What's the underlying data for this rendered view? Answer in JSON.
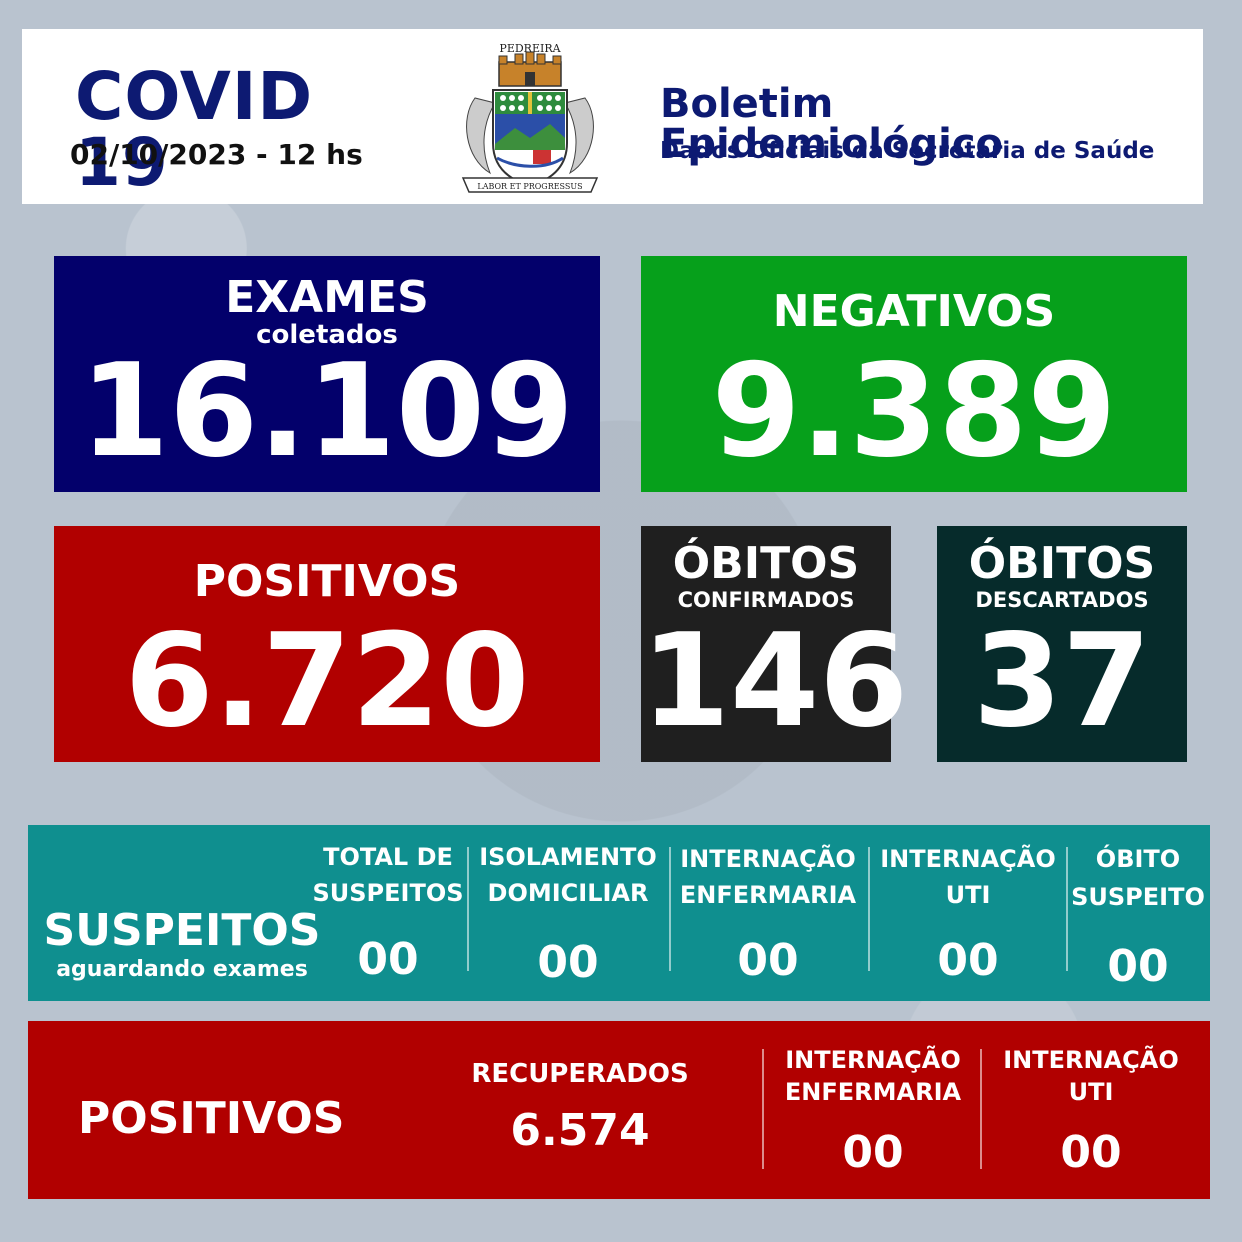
{
  "header": {
    "title": "COVID 19",
    "date": "02/10/2023 - 12 hs",
    "crest": {
      "name": "PEDREIRA",
      "motto": "LABOR ET PROGRESSUS"
    },
    "bulletin_title": "Boletim Epidemiológico",
    "bulletin_subtitle": "Dados Oficiais da Secretaria de Saúde"
  },
  "exames": {
    "label": "EXAMES",
    "sublabel": "coletados",
    "value": "16.109",
    "color": "#03006b"
  },
  "negativos": {
    "label": "NEGATIVOS",
    "value": "9.389",
    "color": "#06a01b"
  },
  "positivos": {
    "label": "POSITIVOS",
    "value": "6.720",
    "color": "#b10000"
  },
  "obitos_confirmados": {
    "label": "ÓBITOS",
    "sublabel": "CONFIRMADOS",
    "value": "146",
    "color": "#1f1f1f"
  },
  "obitos_descartados": {
    "label": "ÓBITOS",
    "sublabel": "DESCARTADOS",
    "value": "37",
    "color": "#062b2b"
  },
  "suspeitos": {
    "title": "SUSPEITOS",
    "subtitle": "aguardando exames",
    "color": "#0f8f8f",
    "columns": [
      {
        "line1": "TOTAL DE",
        "line2": "SUSPEITOS",
        "value": "00"
      },
      {
        "line1": "ISOLAMENTO",
        "line2": "DOMICILIAR",
        "value": "00"
      },
      {
        "line1": "INTERNAÇÃO",
        "line2": "ENFERMARIA",
        "value": "00"
      },
      {
        "line1": "INTERNAÇÃO",
        "line2": "UTI",
        "value": "00"
      },
      {
        "line1": "ÓBITO",
        "line2": "SUSPEITO",
        "value": "00"
      }
    ]
  },
  "positivos_detalhe": {
    "title": "POSITIVOS",
    "color": "#b10000",
    "recuperados": {
      "label": "RECUPERADOS",
      "value": "6.574"
    },
    "columns": [
      {
        "line1": "INTERNAÇÃO",
        "line2": "ENFERMARIA",
        "value": "00"
      },
      {
        "line1": "INTERNAÇÃO",
        "line2": "UTI",
        "value": "00"
      }
    ]
  }
}
